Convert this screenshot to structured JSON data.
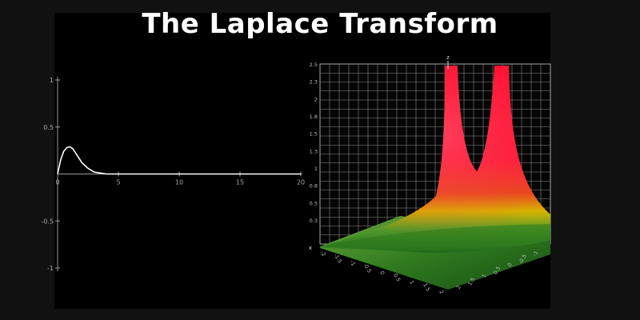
{
  "title": "The Laplace Transform",
  "chart_data": [
    {
      "type": "line",
      "title": "",
      "xlabel": "",
      "ylabel": "",
      "xlim": [
        0,
        20
      ],
      "ylim": [
        -1,
        1
      ],
      "xticks": [
        "0",
        "5",
        "10",
        "15",
        "20"
      ],
      "yticks": [
        "1",
        "0.5",
        "-0.5",
        "-1"
      ],
      "x": [
        0,
        0.25,
        0.5,
        0.75,
        1.0,
        1.25,
        1.5,
        1.75,
        2.0,
        2.5,
        3.0,
        3.5,
        4.0,
        5.0,
        6.0,
        8.0,
        10.0,
        15.0,
        20.0
      ],
      "series": [
        {
          "values": [
            0,
            0.15,
            0.24,
            0.28,
            0.29,
            0.27,
            0.22,
            0.17,
            0.12,
            0.06,
            0.02,
            0.01,
            0.0,
            0.0,
            0.0,
            0.0,
            0.0,
            0.0,
            0.0
          ]
        }
      ],
      "grid": false,
      "colors": {
        "line": "#ffffff",
        "axis": "#9a9a9a"
      }
    },
    {
      "type": "surface",
      "title": "",
      "zlabel": "z",
      "xlabel": "x",
      "zlim": [
        0,
        2.5
      ],
      "zticks": [
        "2.5",
        "2.3",
        "2",
        "1.8",
        "1.5",
        "1.3",
        "1",
        "0.8",
        "0.5",
        "0.3"
      ],
      "xticks": [
        "-2",
        "-1.5",
        "-1",
        "-0.5",
        "0",
        "0.5",
        "1",
        "1.5",
        "2"
      ],
      "yticks": [
        "2",
        "1.5",
        "1",
        "0.5",
        "0",
        "-0.5",
        "-1"
      ],
      "description_of_values": "magnitude surface with two tall peaks near the top, exceeding z = 2.5",
      "grid": true,
      "colors": {
        "low": "#2f7d1e",
        "mid": "#e0b000",
        "high": "#ff1a33",
        "grid": "#cfcfcf"
      }
    }
  ]
}
